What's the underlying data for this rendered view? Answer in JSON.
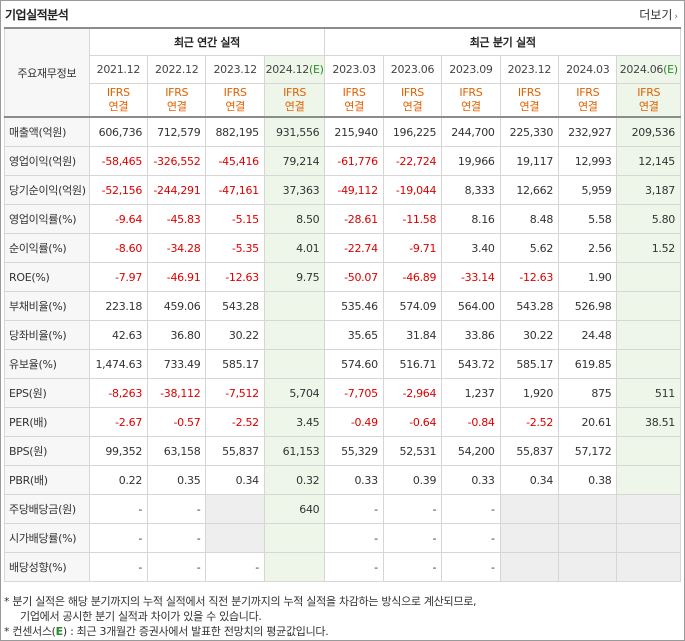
{
  "title": "기업실적분석",
  "more_label": "더보기",
  "group_headers": {
    "annual": "최근 연간 실적",
    "quarterly": "최근 분기 실적",
    "corner": "주요재무정보"
  },
  "periods": [
    {
      "label": "2021.12",
      "est": false
    },
    {
      "label": "2022.12",
      "est": false
    },
    {
      "label": "2023.12",
      "est": false
    },
    {
      "label": "2024.12",
      "est": true
    },
    {
      "label": "2023.03",
      "est": false
    },
    {
      "label": "2023.06",
      "est": false
    },
    {
      "label": "2023.09",
      "est": false
    },
    {
      "label": "2023.12",
      "est": false
    },
    {
      "label": "2024.03",
      "est": false
    },
    {
      "label": "2024.06",
      "est": true
    }
  ],
  "est_mark": "(E)",
  "basis_line1": "IFRS",
  "basis_line2": "연결",
  "rows": [
    {
      "label": "매출액(억원)",
      "group_start": false,
      "values": [
        "606,736",
        "712,579",
        "882,195",
        "931,556",
        "215,940",
        "196,225",
        "244,700",
        "225,330",
        "232,927",
        "209,536"
      ]
    },
    {
      "label": "영업이익(억원)",
      "group_start": false,
      "values": [
        "-58,465",
        "-326,552",
        "-45,416",
        "79,214",
        "-61,776",
        "-22,724",
        "19,966",
        "19,117",
        "12,993",
        "12,145"
      ]
    },
    {
      "label": "당기순이익(억원)",
      "group_start": false,
      "values": [
        "-52,156",
        "-244,291",
        "-47,161",
        "37,363",
        "-49,112",
        "-19,044",
        "8,333",
        "12,662",
        "5,959",
        "3,187"
      ]
    },
    {
      "label": "영업이익률(%)",
      "group_start": true,
      "values": [
        "-9.64",
        "-45.83",
        "-5.15",
        "8.50",
        "-28.61",
        "-11.58",
        "8.16",
        "8.48",
        "5.58",
        "5.80"
      ]
    },
    {
      "label": "순이익률(%)",
      "group_start": false,
      "values": [
        "-8.60",
        "-34.28",
        "-5.35",
        "4.01",
        "-22.74",
        "-9.71",
        "3.40",
        "5.62",
        "2.56",
        "1.52"
      ]
    },
    {
      "label": "ROE(%)",
      "group_start": false,
      "values": [
        "-7.97",
        "-46.91",
        "-12.63",
        "9.75",
        "-50.07",
        "-46.89",
        "-33.14",
        "-12.63",
        "1.90",
        ""
      ]
    },
    {
      "label": "부채비율(%)",
      "group_start": true,
      "values": [
        "223.18",
        "459.06",
        "543.28",
        "",
        "535.46",
        "574.09",
        "564.00",
        "543.28",
        "526.98",
        ""
      ]
    },
    {
      "label": "당좌비율(%)",
      "group_start": false,
      "values": [
        "42.63",
        "36.80",
        "30.22",
        "",
        "35.65",
        "31.84",
        "33.86",
        "30.22",
        "24.48",
        ""
      ]
    },
    {
      "label": "유보율(%)",
      "group_start": false,
      "values": [
        "1,474.63",
        "733.49",
        "585.17",
        "",
        "574.60",
        "516.71",
        "543.72",
        "585.17",
        "619.85",
        ""
      ]
    },
    {
      "label": "EPS(원)",
      "group_start": true,
      "values": [
        "-8,263",
        "-38,112",
        "-7,512",
        "5,704",
        "-7,705",
        "-2,964",
        "1,237",
        "1,920",
        "875",
        "511"
      ]
    },
    {
      "label": "PER(배)",
      "group_start": false,
      "values": [
        "-2.67",
        "-0.57",
        "-2.52",
        "3.45",
        "-0.49",
        "-0.64",
        "-0.84",
        "-2.52",
        "20.61",
        "38.51"
      ]
    },
    {
      "label": "BPS(원)",
      "group_start": false,
      "values": [
        "99,352",
        "63,158",
        "55,837",
        "61,153",
        "55,329",
        "52,531",
        "54,200",
        "55,837",
        "57,172",
        ""
      ]
    },
    {
      "label": "PBR(배)",
      "group_start": false,
      "values": [
        "0.22",
        "0.35",
        "0.34",
        "0.32",
        "0.33",
        "0.39",
        "0.33",
        "0.34",
        "0.38",
        ""
      ]
    },
    {
      "label": "주당배당금(원)",
      "group_start": true,
      "values": [
        "-",
        "-",
        "",
        "640",
        "-",
        "-",
        "-",
        "",
        "",
        ""
      ],
      "gray": [
        false,
        false,
        true,
        false,
        false,
        false,
        false,
        true,
        true,
        true
      ]
    },
    {
      "label": "시가배당률(%)",
      "group_start": false,
      "values": [
        "-",
        "-",
        "",
        "",
        "-",
        "-",
        "-",
        "",
        "",
        ""
      ],
      "gray": [
        false,
        false,
        true,
        false,
        false,
        false,
        false,
        true,
        true,
        true
      ]
    },
    {
      "label": "배당성향(%)",
      "group_start": false,
      "values": [
        "-",
        "-",
        "-",
        "",
        "-",
        "-",
        "-",
        "",
        "",
        ""
      ],
      "gray": [
        false,
        false,
        false,
        false,
        false,
        false,
        false,
        true,
        true,
        true
      ]
    }
  ],
  "notes": {
    "line1": "* 분기 실적은 해당 분기까지의 누적 실적에서 직전 분기까지의 누적 실적을 차감하는 방식으로 계산되므로,",
    "line2": "기업에서 공시한 분기 실적과 차이가 있을 수 있습니다.",
    "line3_pre": "* 컨센서스(",
    "line3_e": "E",
    "line3_post": ") : 최근 3개월간 증권사에서 발표한 전망치의 평균값입니다."
  }
}
